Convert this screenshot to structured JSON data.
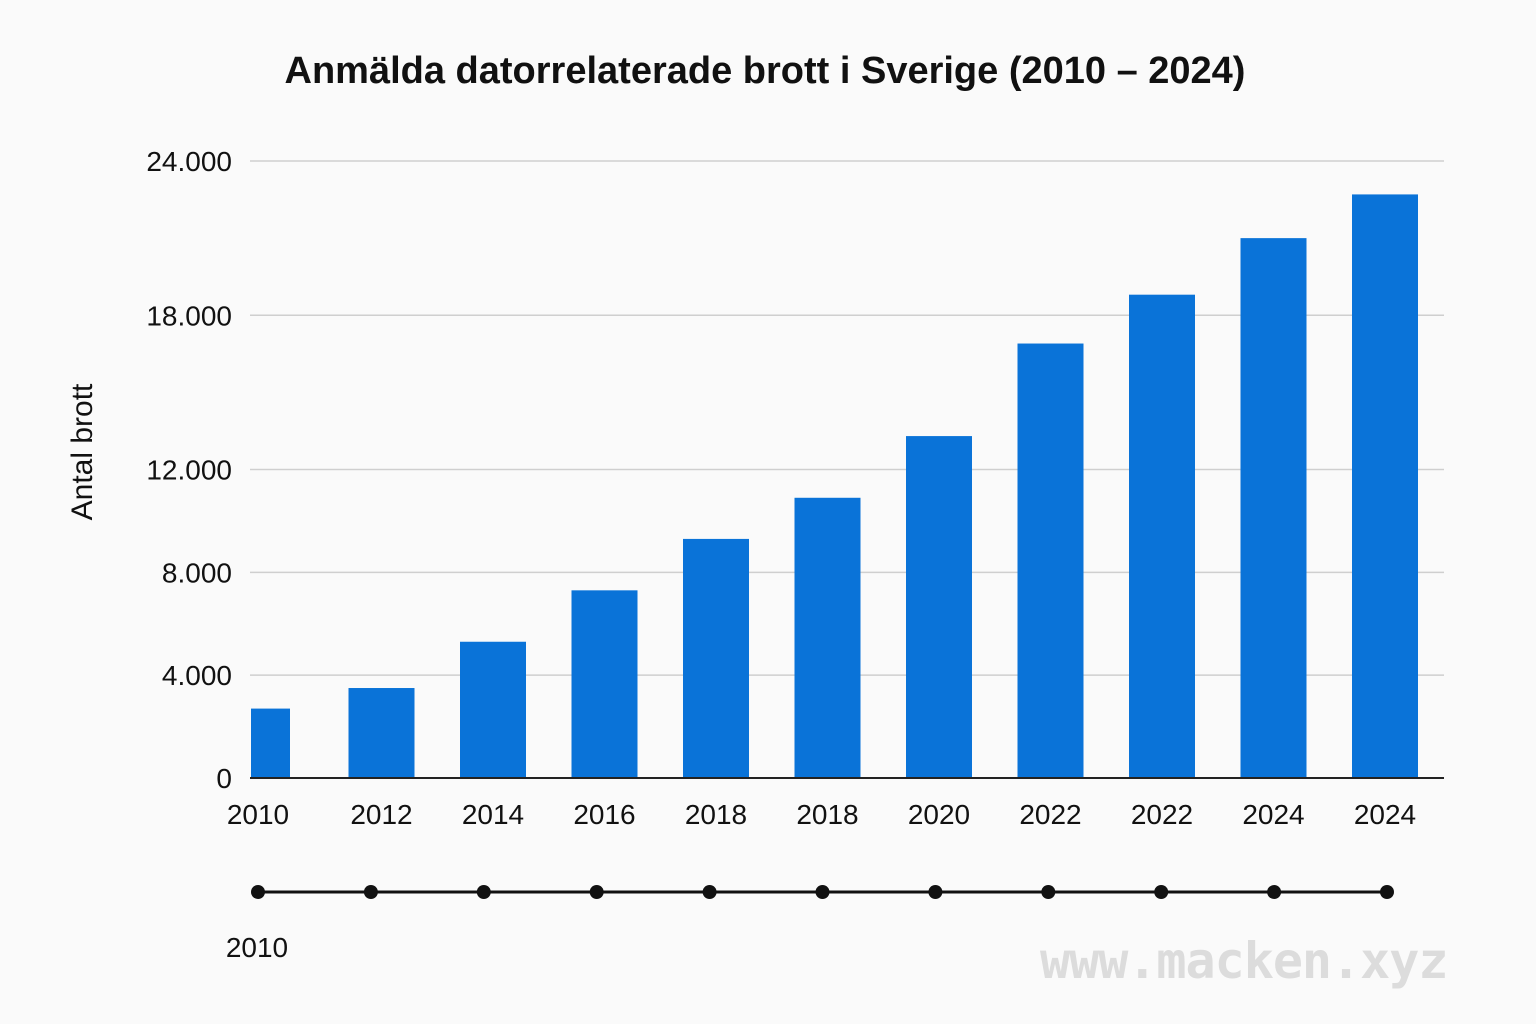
{
  "chart_data": {
    "type": "bar",
    "title": "Anmälda datorrelaterade brott i Sverige (2010 – 2024)",
    "xlabel": "",
    "ylabel": "Antal brott",
    "categories": [
      "2010",
      "2012",
      "2014",
      "2016",
      "2018",
      "2018",
      "2020",
      "2022",
      "2022",
      "2024",
      "2024"
    ],
    "values": [
      2700,
      3500,
      5300,
      7300,
      9300,
      10900,
      13300,
      16900,
      18800,
      21000,
      22700
    ],
    "ylim": [
      0,
      24000
    ],
    "yticks": [
      {
        "value": 0,
        "label": "0"
      },
      {
        "value": 4000,
        "label": "4.000"
      },
      {
        "value": 8000,
        "label": "8.000"
      },
      {
        "value": 12000,
        "label": "12.000"
      },
      {
        "value": 18000,
        "label": "18.000"
      },
      {
        "value": 24000,
        "label": "24.000"
      }
    ],
    "grid": true,
    "bar_color": "#0a73d8",
    "timeline": {
      "points": 11,
      "start_label": "2010"
    }
  },
  "watermark": "www.macken.xyz"
}
